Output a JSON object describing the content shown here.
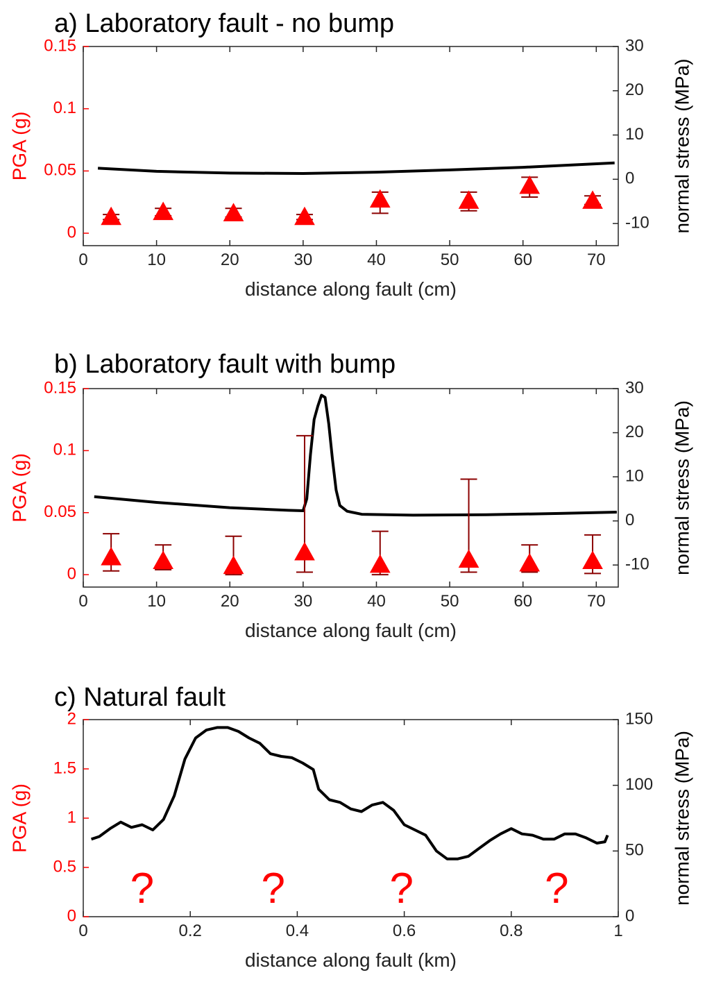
{
  "chart_data": [
    {
      "type": "scatter",
      "title": "a) Laboratory fault - no bump",
      "xlabel": "distance along fault (cm)",
      "ylabel_left": "PGA (g)",
      "ylabel_right": "normal stress (MPa)",
      "xlim": [
        0,
        73
      ],
      "ylim_left": [
        -0.01,
        0.15
      ],
      "ylim_right": [
        -15,
        30
      ],
      "x_ticks": [
        0,
        10,
        20,
        30,
        40,
        50,
        60,
        70
      ],
      "x_tick_labels": [
        "0",
        "10",
        "20",
        "30",
        "40",
        "50",
        "60",
        "70"
      ],
      "y_left_ticks": [
        0,
        0.05,
        0.1,
        0.15
      ],
      "y_left_tick_labels": [
        "0",
        "0.05",
        "0.1",
        "0.15"
      ],
      "y_right_ticks": [
        -10,
        0,
        10,
        20,
        30
      ],
      "y_right_tick_labels": [
        "-10",
        "0",
        "10",
        "20",
        "30"
      ],
      "pga_series": {
        "axis": "left",
        "color": "#ff0000",
        "errorbar_color": "#8b0000",
        "x": [
          3.8,
          10.9,
          20.5,
          30.2,
          40.5,
          52.6,
          60.9,
          69.5
        ],
        "y": [
          0.013,
          0.017,
          0.016,
          0.013,
          0.027,
          0.026,
          0.038,
          0.026
        ],
        "err_low": [
          0.011,
          0.014,
          0.013,
          0.011,
          0.016,
          0.018,
          0.029,
          0.023
        ],
        "err_high": [
          0.015,
          0.02,
          0.02,
          0.015,
          0.033,
          0.033,
          0.045,
          0.03
        ]
      },
      "stress_series": {
        "axis": "right",
        "color": "#000000",
        "x": [
          2,
          10,
          20,
          30,
          40,
          50,
          60,
          72.5
        ],
        "y": [
          2.5,
          1.8,
          1.4,
          1.3,
          1.6,
          2.1,
          2.7,
          3.7
        ]
      }
    },
    {
      "type": "scatter",
      "title": "b) Laboratory fault with bump",
      "xlabel": "distance along fault (cm)",
      "ylabel_left": "PGA (g)",
      "ylabel_right": "normal stress (MPa)",
      "xlim": [
        0,
        73
      ],
      "ylim_left": [
        -0.01,
        0.15
      ],
      "ylim_right": [
        -15,
        30
      ],
      "x_ticks": [
        0,
        10,
        20,
        30,
        40,
        50,
        60,
        70
      ],
      "x_tick_labels": [
        "0",
        "10",
        "20",
        "30",
        "40",
        "50",
        "60",
        "70"
      ],
      "y_left_ticks": [
        0,
        0.05,
        0.1,
        0.15
      ],
      "y_left_tick_labels": [
        "0",
        "0.05",
        "0.1",
        "0.15"
      ],
      "y_right_ticks": [
        -10,
        0,
        10,
        20,
        30
      ],
      "y_right_tick_labels": [
        "-10",
        "0",
        "10",
        "20",
        "30"
      ],
      "pga_series": {
        "axis": "left",
        "color": "#ff0000",
        "errorbar_color": "#8b0000",
        "x": [
          3.8,
          10.9,
          20.5,
          30.2,
          40.5,
          52.6,
          60.9,
          69.5
        ],
        "y": [
          0.014,
          0.011,
          0.007,
          0.018,
          0.008,
          0.012,
          0.009,
          0.011
        ],
        "err_low": [
          0.003,
          0.004,
          0.0,
          0.002,
          0.0,
          0.002,
          0.002,
          0.001
        ],
        "err_high": [
          0.033,
          0.024,
          0.031,
          0.112,
          0.035,
          0.077,
          0.024,
          0.032
        ]
      },
      "stress_series": {
        "axis": "right",
        "color": "#000000",
        "x": [
          1.5,
          10,
          20,
          28,
          30,
          30.5,
          31,
          31.5,
          32,
          32.5,
          33,
          33.5,
          34,
          34.5,
          35,
          36,
          38,
          45,
          55,
          65,
          72.8
        ],
        "y": [
          5.5,
          4.2,
          3.0,
          2.4,
          2.3,
          5,
          15,
          23,
          26,
          28.5,
          28,
          22,
          14,
          7,
          3.5,
          2.2,
          1.5,
          1.3,
          1.4,
          1.7,
          2.0
        ]
      }
    },
    {
      "type": "line",
      "title": "c) Natural fault",
      "xlabel": "distance along fault (km)",
      "ylabel_left": "PGA (g)",
      "ylabel_right": "normal stress (MPa)",
      "xlim": [
        0,
        1
      ],
      "ylim_left": [
        0,
        2
      ],
      "ylim_right": [
        0,
        150
      ],
      "x_ticks": [
        0,
        0.2,
        0.4,
        0.6,
        0.8,
        1
      ],
      "x_tick_labels": [
        "0",
        "0.2",
        "0.4",
        "0.6",
        "0.8",
        "1"
      ],
      "y_left_ticks": [
        0,
        0.5,
        1,
        1.5,
        2
      ],
      "y_left_tick_labels": [
        "0",
        "0.5",
        "1",
        "1.5",
        "2"
      ],
      "y_right_ticks": [
        0,
        50,
        100,
        150
      ],
      "y_right_tick_labels": [
        "0",
        "50",
        "100",
        "150"
      ],
      "question_marks": {
        "text": "?",
        "color": "#ff0000",
        "x": [
          0.11,
          0.355,
          0.595,
          0.885
        ]
      },
      "stress_series": {
        "axis": "right",
        "color": "#000000",
        "x": [
          0.015,
          0.03,
          0.05,
          0.07,
          0.09,
          0.11,
          0.13,
          0.15,
          0.17,
          0.19,
          0.21,
          0.23,
          0.25,
          0.27,
          0.29,
          0.31,
          0.33,
          0.35,
          0.37,
          0.39,
          0.41,
          0.43,
          0.44,
          0.46,
          0.48,
          0.5,
          0.52,
          0.54,
          0.56,
          0.58,
          0.6,
          0.62,
          0.64,
          0.66,
          0.68,
          0.7,
          0.72,
          0.74,
          0.76,
          0.78,
          0.8,
          0.82,
          0.84,
          0.86,
          0.88,
          0.9,
          0.92,
          0.94,
          0.96,
          0.975,
          0.98
        ],
        "y": [
          59,
          61,
          67,
          72,
          68,
          70,
          66,
          74,
          92,
          120,
          136,
          142,
          144,
          144,
          141,
          136,
          132,
          124,
          122,
          121,
          117,
          112,
          97,
          89,
          87,
          82,
          80,
          85,
          87,
          81,
          70,
          66,
          62,
          50,
          44,
          44,
          46,
          52,
          58,
          63,
          67,
          63,
          62,
          59,
          59,
          63,
          63,
          60,
          56,
          57,
          62
        ]
      }
    }
  ]
}
